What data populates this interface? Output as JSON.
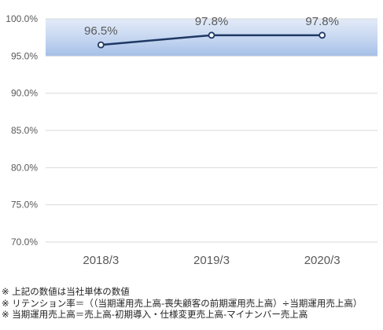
{
  "chart_data": {
    "type": "line",
    "categories": [
      "2018/3",
      "2019/3",
      "2020/3"
    ],
    "series": [
      {
        "values": [
          96.5,
          97.8,
          97.8
        ],
        "data_labels": [
          "96.5%",
          "97.8%",
          "97.8%"
        ]
      }
    ],
    "yticks": [
      "100.0%",
      "95.0%",
      "90.0%",
      "85.0%",
      "80.0%",
      "75.0%",
      "70.0%"
    ],
    "ylim": [
      70,
      100
    ],
    "highlight_band": [
      95,
      100
    ],
    "grid": true,
    "line_color": "#1f3864",
    "band_color": "#c9d9f2"
  },
  "notes": [
    "※  上記の数値は当社単体の数値",
    "※  リテンション率＝（（当期運用売上高-喪失顧客の前期運用売上高）÷当期運用売上高）",
    "※  当期運用売上高＝売上高-初期導入・仕様変更売上高-マイナンバー売上高"
  ]
}
